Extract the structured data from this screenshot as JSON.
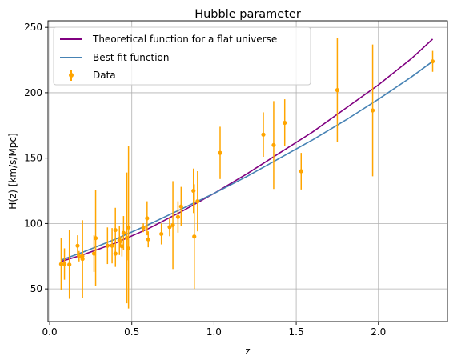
{
  "chart_data": {
    "type": "scatter",
    "title": "Hubble parameter",
    "xlabel": "z",
    "ylabel": "H(z) [km/s/Mpc]",
    "xlim": [
      -0.01,
      2.42
    ],
    "ylim": [
      25,
      255
    ],
    "xticks": [
      0.0,
      0.5,
      1.0,
      1.5,
      2.0
    ],
    "xtick_labels": [
      "0.0",
      "0.5",
      "1.0",
      "1.5",
      "2.0"
    ],
    "yticks": [
      50,
      100,
      150,
      200,
      250
    ],
    "ytick_labels": [
      "50",
      "100",
      "150",
      "200",
      "250"
    ],
    "grid": true,
    "legend_position": "top-left",
    "colors": {
      "theory": "#800080",
      "fit": "#4682b4",
      "data": "#ffa500"
    },
    "series": [
      {
        "name": "Theoretical function for a flat universe",
        "kind": "line",
        "color": "#800080",
        "x": [
          0.07,
          0.2,
          0.4,
          0.6,
          0.8,
          1.0,
          1.2,
          1.4,
          1.6,
          1.8,
          2.0,
          2.2,
          2.33
        ],
        "y": [
          71,
          76,
          85,
          96,
          109,
          123,
          138,
          154,
          170,
          188,
          206,
          226,
          241
        ]
      },
      {
        "name": "Best fit function",
        "kind": "line",
        "color": "#4682b4",
        "x": [
          0.07,
          0.2,
          0.4,
          0.6,
          0.8,
          1.0,
          1.2,
          1.4,
          1.6,
          1.8,
          2.0,
          2.2,
          2.33
        ],
        "y": [
          72,
          78,
          88,
          99,
          111,
          123,
          136,
          150,
          164,
          179,
          195,
          212,
          224
        ]
      },
      {
        "name": "Data",
        "kind": "errorbar",
        "color": "#ffa500",
        "points": [
          {
            "x": 0.07,
            "y": 69,
            "err": 19.6
          },
          {
            "x": 0.09,
            "y": 69,
            "err": 12
          },
          {
            "x": 0.12,
            "y": 68.6,
            "err": 26.2
          },
          {
            "x": 0.17,
            "y": 83,
            "err": 8
          },
          {
            "x": 0.179,
            "y": 75,
            "err": 4
          },
          {
            "x": 0.199,
            "y": 75,
            "err": 5
          },
          {
            "x": 0.2,
            "y": 72.9,
            "err": 29.6
          },
          {
            "x": 0.27,
            "y": 77,
            "err": 14
          },
          {
            "x": 0.28,
            "y": 88.8,
            "err": 36.6
          },
          {
            "x": 0.352,
            "y": 83,
            "err": 14
          },
          {
            "x": 0.38,
            "y": 83,
            "err": 13.5
          },
          {
            "x": 0.4,
            "y": 95,
            "err": 17
          },
          {
            "x": 0.4004,
            "y": 77,
            "err": 10.2
          },
          {
            "x": 0.4247,
            "y": 87.1,
            "err": 11.2
          },
          {
            "x": 0.43,
            "y": 86.5,
            "err": 3.7
          },
          {
            "x": 0.44,
            "y": 82.6,
            "err": 7.8
          },
          {
            "x": 0.4497,
            "y": 92.8,
            "err": 12.9
          },
          {
            "x": 0.47,
            "y": 89,
            "err": 50
          },
          {
            "x": 0.4783,
            "y": 80.9,
            "err": 9
          },
          {
            "x": 0.48,
            "y": 97,
            "err": 62
          },
          {
            "x": 0.57,
            "y": 96.8,
            "err": 3.4
          },
          {
            "x": 0.593,
            "y": 104,
            "err": 13
          },
          {
            "x": 0.6,
            "y": 87.9,
            "err": 6.1
          },
          {
            "x": 0.68,
            "y": 92,
            "err": 8
          },
          {
            "x": 0.73,
            "y": 97.3,
            "err": 7
          },
          {
            "x": 0.781,
            "y": 105,
            "err": 12
          },
          {
            "x": 0.875,
            "y": 125,
            "err": 17
          },
          {
            "x": 0.88,
            "y": 90,
            "err": 40
          },
          {
            "x": 0.9,
            "y": 117,
            "err": 23
          },
          {
            "x": 1.037,
            "y": 154,
            "err": 20
          },
          {
            "x": 1.3,
            "y": 168,
            "err": 17
          },
          {
            "x": 1.363,
            "y": 160,
            "err": 33.6
          },
          {
            "x": 1.43,
            "y": 177,
            "err": 18
          },
          {
            "x": 1.53,
            "y": 140,
            "err": 14
          },
          {
            "x": 1.75,
            "y": 202,
            "err": 40
          },
          {
            "x": 1.965,
            "y": 186.5,
            "err": 50.4
          },
          {
            "x": 2.33,
            "y": 224,
            "err": 8
          },
          {
            "x": 0.75,
            "y": 98.8,
            "err": 33.6
          },
          {
            "x": 0.8,
            "y": 113,
            "err": 15
          }
        ]
      }
    ]
  }
}
